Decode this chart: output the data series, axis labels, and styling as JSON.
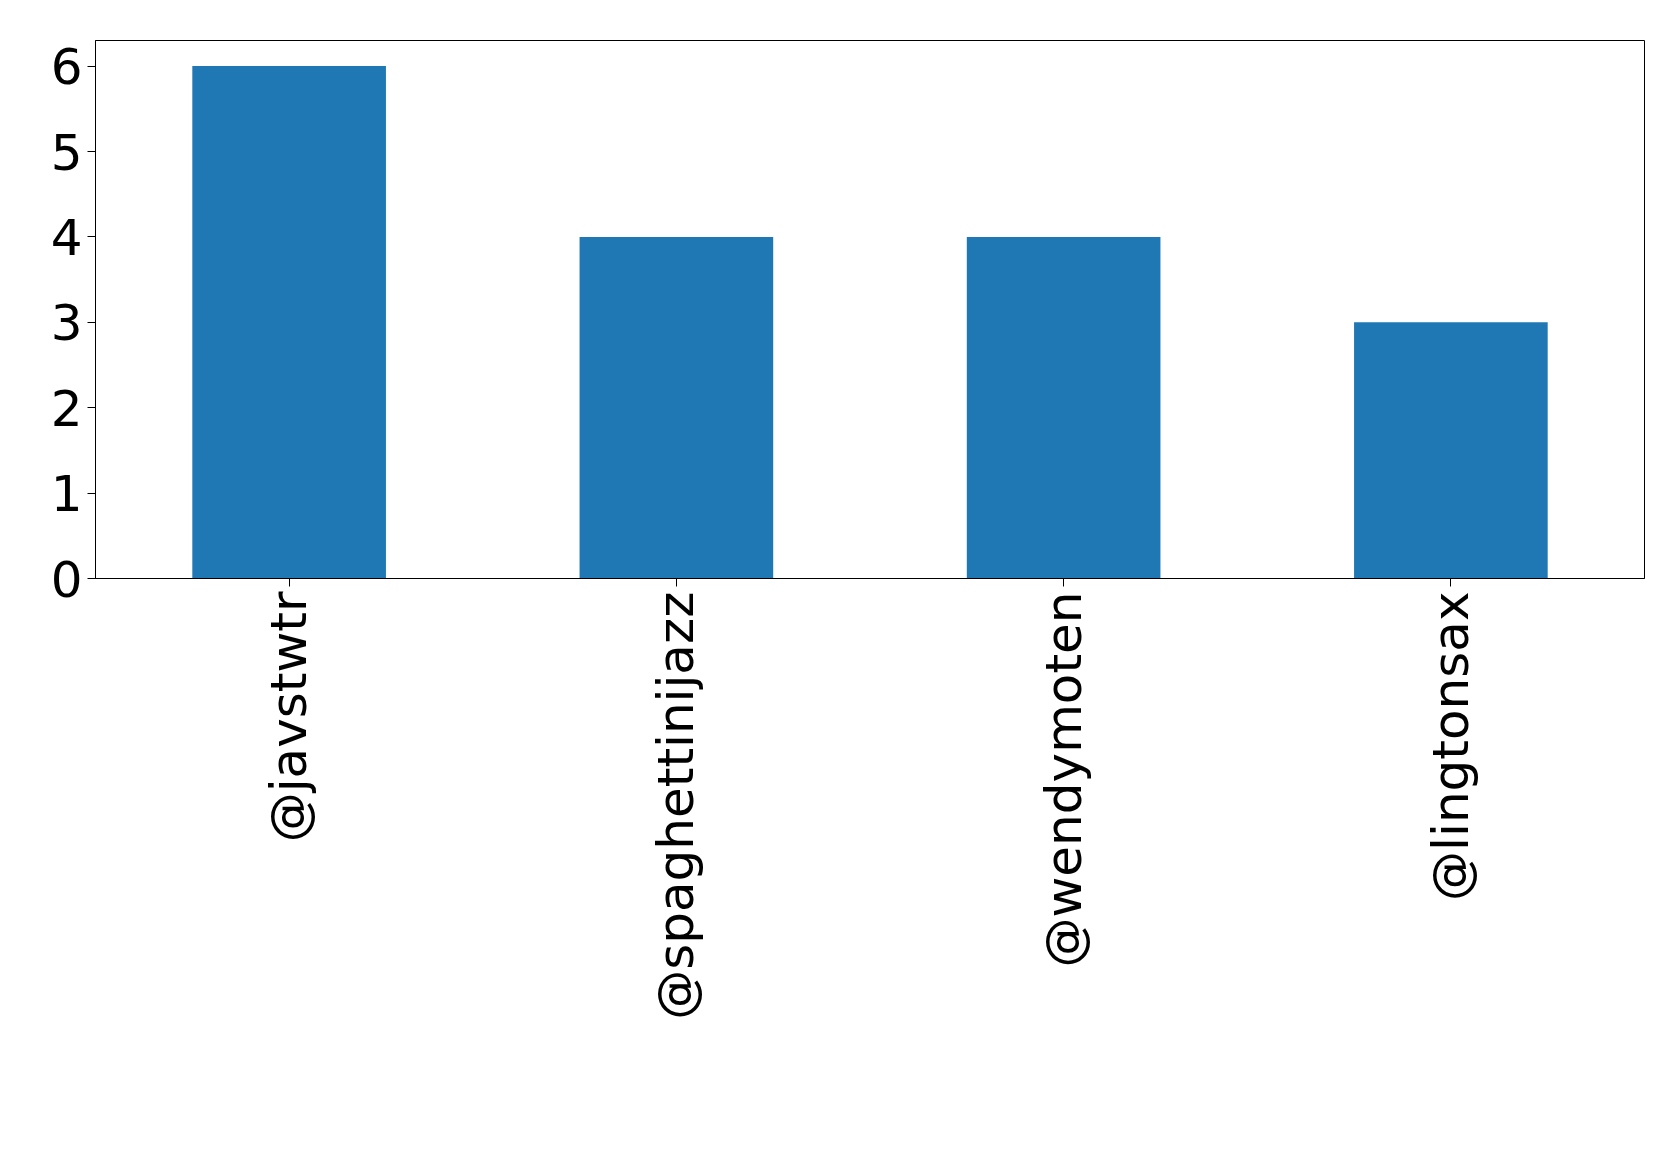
{
  "chart_data": {
    "type": "bar",
    "categories": [
      "@javstwtr",
      "@spaghettinijazz",
      "@wendymoten",
      "@lingtonsax"
    ],
    "values": [
      6,
      4,
      4,
      3
    ],
    "color": "#1f77b4",
    "ylim": [
      0,
      6.3
    ],
    "yticks": [
      0,
      1,
      2,
      3,
      4,
      5,
      6
    ],
    "grid": false
  }
}
